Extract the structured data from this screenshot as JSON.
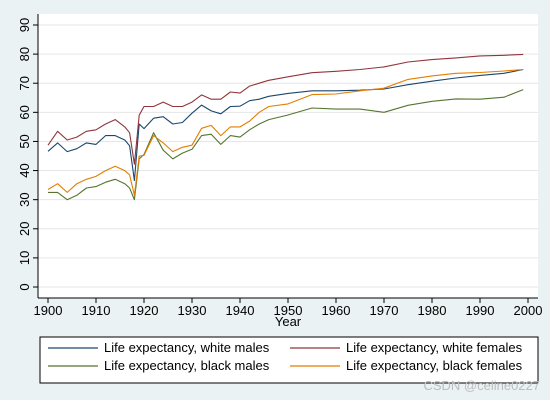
{
  "chart_data": {
    "type": "line",
    "xlabel": "Year",
    "ylabel": "",
    "xlim": [
      1900,
      2000
    ],
    "ylim": [
      0,
      90
    ],
    "xticks": [
      1900,
      1910,
      1920,
      1930,
      1940,
      1950,
      1960,
      1970,
      1980,
      1990,
      2000
    ],
    "yticks": [
      0,
      10,
      20,
      30,
      40,
      50,
      60,
      70,
      80,
      90
    ],
    "grid": true,
    "legend_position": "bottom",
    "x": [
      1900,
      1902,
      1904,
      1906,
      1908,
      1910,
      1912,
      1914,
      1916,
      1917,
      1918,
      1919,
      1920,
      1922,
      1924,
      1926,
      1928,
      1930,
      1932,
      1934,
      1936,
      1938,
      1940,
      1942,
      1944,
      1946,
      1950,
      1955,
      1960,
      1965,
      1970,
      1975,
      1980,
      1985,
      1990,
      1995,
      1999
    ],
    "series": [
      {
        "name": "Life expectancy, white males",
        "color": "#1a476f",
        "values": [
          46.6,
          49.5,
          46.5,
          47.5,
          49.5,
          49.0,
          52.0,
          52.0,
          50.5,
          48.5,
          36.6,
          56.0,
          54.4,
          58.0,
          58.5,
          56.0,
          56.5,
          59.7,
          62.5,
          60.5,
          59.5,
          62.0,
          62.1,
          64.0,
          64.5,
          65.5,
          66.5,
          67.4,
          67.4,
          67.6,
          68.0,
          69.5,
          70.7,
          71.8,
          72.7,
          73.4,
          74.7
        ]
      },
      {
        "name": "Life expectancy, white females",
        "color": "#90353b",
        "values": [
          48.7,
          53.5,
          50.5,
          51.5,
          53.5,
          54.0,
          56.0,
          57.5,
          55.0,
          53.0,
          42.2,
          59.0,
          62.0,
          62.0,
          63.5,
          62.0,
          62.0,
          63.5,
          66.0,
          64.5,
          64.5,
          67.0,
          66.6,
          69.0,
          70.0,
          71.0,
          72.2,
          73.6,
          74.1,
          74.7,
          75.6,
          77.3,
          78.1,
          78.7,
          79.4,
          79.6,
          79.9
        ]
      },
      {
        "name": "Life expectancy, black males",
        "color": "#55752f",
        "values": [
          32.5,
          32.5,
          30.0,
          31.5,
          34.0,
          34.5,
          36.0,
          37.0,
          35.5,
          34.0,
          30.0,
          44.0,
          45.5,
          53.0,
          47.0,
          44.0,
          46.0,
          47.3,
          52.0,
          52.5,
          49.0,
          52.0,
          51.5,
          54.0,
          56.0,
          57.5,
          59.1,
          61.5,
          61.1,
          61.1,
          60.0,
          62.4,
          63.8,
          64.6,
          64.5,
          65.2,
          67.8
        ]
      },
      {
        "name": "Life expectancy, black females",
        "color": "#e37e00",
        "values": [
          33.5,
          35.5,
          32.5,
          35.5,
          37.0,
          38.0,
          40.0,
          41.5,
          40.0,
          38.5,
          31.5,
          45.0,
          45.2,
          52.0,
          49.5,
          46.5,
          48.0,
          48.7,
          54.5,
          55.5,
          52.0,
          55.0,
          55.0,
          57.0,
          60.0,
          62.0,
          62.9,
          66.1,
          66.3,
          67.4,
          68.3,
          71.3,
          72.5,
          73.4,
          73.7,
          74.2,
          74.7
        ]
      }
    ]
  },
  "watermark": "CSDN @celine0227"
}
